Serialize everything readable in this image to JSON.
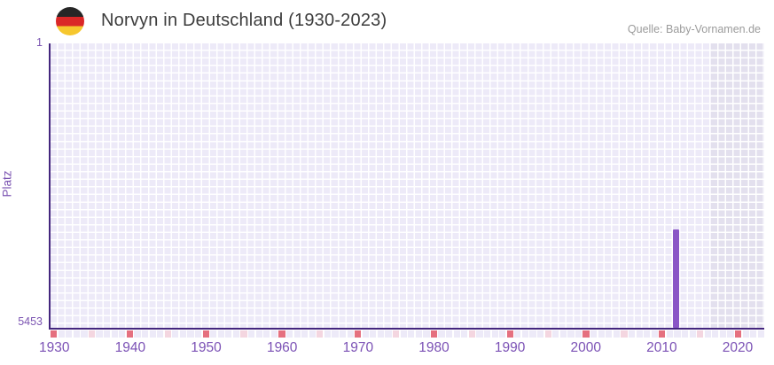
{
  "header": {
    "title": "Norvyn in Deutschland (1930-2023)",
    "source": "Quelle: Baby-Vornamen.de",
    "flag_icon": "german-flag-icon"
  },
  "y_axis": {
    "title": "Platz",
    "top_tick": "1",
    "bottom_tick": "5453"
  },
  "chart_data": {
    "type": "bar",
    "title": "Norvyn in Deutschland (1930-2023)",
    "xlabel": "",
    "ylabel": "Platz",
    "y_inverted": true,
    "ylim": [
      1,
      5453
    ],
    "x_year_start": 1930,
    "x_year_end": 2023,
    "x_tick_labels": [
      "1930",
      "1940",
      "1950",
      "1960",
      "1970",
      "1980",
      "1990",
      "2000",
      "2010",
      "2020"
    ],
    "points": [
      {
        "year": 2012,
        "rank": 3563
      }
    ],
    "shaded_region_years": {
      "from": 2017,
      "to": 2023
    },
    "decade_marker_interval": 10,
    "half_decade_marker_interval": 5,
    "grid": true,
    "legend": false
  },
  "styles": {
    "bar_color": "#8a56c6",
    "axis_line_color": "#44267e",
    "tick_text_color": "#7b51b5",
    "title_color": "#3c3c3c",
    "source_color": "#9b9b9b",
    "cell_color": "#edeaf8",
    "cell_shaded_color": "#e3e0ee",
    "grid_line_color": "#ffffff",
    "strip_decade_color": "#e5707f",
    "strip_half_decade_color": "#f4d6e0",
    "flag_black": "#262626",
    "flag_red": "#da2727",
    "flag_gold": "#f6c72e"
  }
}
